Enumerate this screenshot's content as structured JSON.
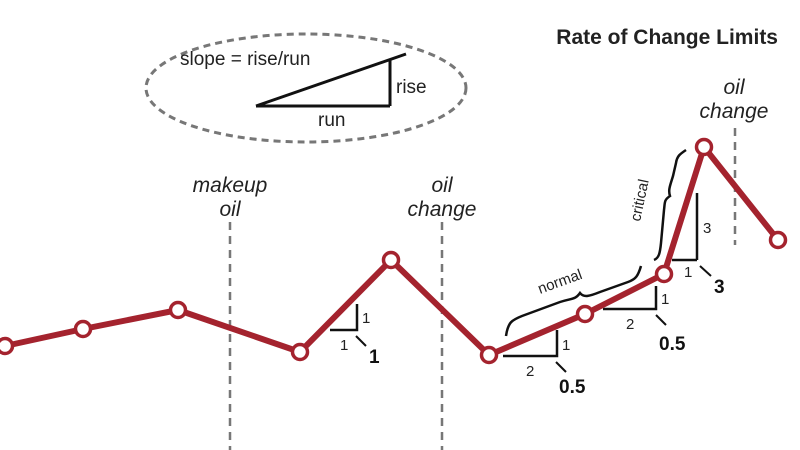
{
  "title": "Rate of Change Limits",
  "legend": {
    "formula": "slope = rise/run",
    "rise_label": "rise",
    "run_label": "run"
  },
  "events": [
    {
      "line1": "makeup",
      "line2": "oil"
    },
    {
      "line1": "oil",
      "line2": "change"
    },
    {
      "line1": "oil",
      "line2": "change"
    }
  ],
  "slope_markers": [
    {
      "rise": "1",
      "run": "1",
      "value": "1"
    },
    {
      "rise": "1",
      "run": "2",
      "value": "0.5"
    },
    {
      "rise": "1",
      "run": "2",
      "value": "0.5"
    },
    {
      "rise": "3",
      "run": "1",
      "value": "3"
    }
  ],
  "brackets": {
    "normal": "normal",
    "critical": "critical"
  },
  "colors": {
    "trend_line": "#a4232e",
    "marker_fill": "#ffffff",
    "dashed": "#777777",
    "ink": "#111111"
  }
}
